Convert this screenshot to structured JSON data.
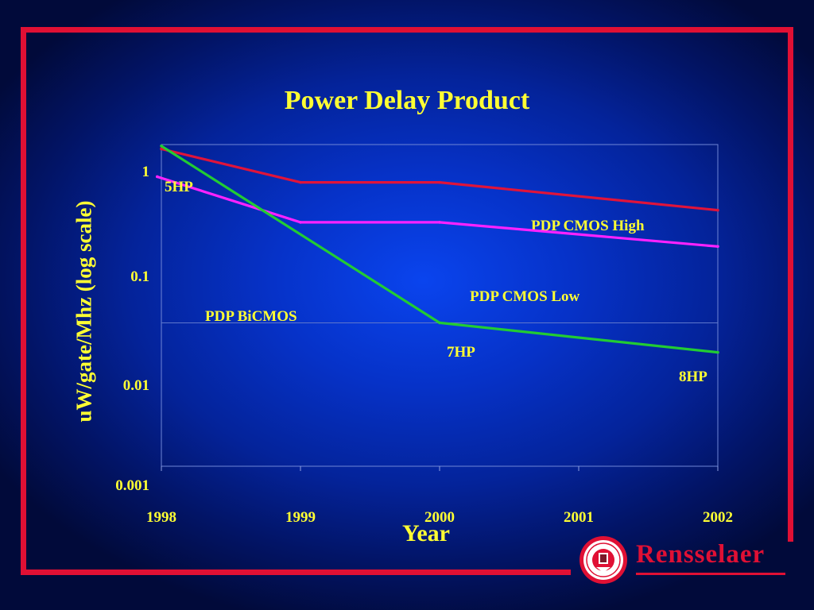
{
  "colors": {
    "frame": "#e01034",
    "text": "#ffff33",
    "cmos_high": "#e0143a",
    "cmos_low": "#ff22ff",
    "bicmos": "#22cc33"
  },
  "icons": {
    "logo": "rensselaer-seal-icon"
  },
  "brand": {
    "name": "Rensselaer"
  },
  "chart_data": {
    "type": "line",
    "title": "Power Delay Product",
    "xlabel": "Year",
    "ylabel": "uW/gate/Mhz (log scale)",
    "y_scale": "log",
    "ylim": [
      0.001,
      1
    ],
    "yticks": [
      "1",
      "0.1",
      "0.01",
      "0.001"
    ],
    "categories": [
      "1998",
      "1999",
      "2000",
      "2001",
      "2002"
    ],
    "grid": true,
    "series": [
      {
        "label": "PDP CMOS High",
        "x": [
          1998,
          1999,
          2000,
          2002
        ],
        "values": [
          0.64,
          0.32,
          0.32,
          0.18
        ]
      },
      {
        "label": "PDP CMOS Low",
        "x": [
          1997.97,
          1999,
          2000,
          2002
        ],
        "values": [
          0.36,
          0.14,
          0.14,
          0.085
        ]
      },
      {
        "label": "PDP BiCMOS",
        "x": [
          1998,
          2000,
          2002
        ],
        "values": [
          0.68,
          0.0175,
          0.0095
        ]
      }
    ],
    "annotations": [
      {
        "text": "5HP",
        "x": 1998,
        "y": 0.68
      },
      {
        "text": "7HP",
        "x": 2000,
        "y": 0.0175
      },
      {
        "text": "8HP",
        "x": 2002,
        "y": 0.0095
      }
    ]
  }
}
